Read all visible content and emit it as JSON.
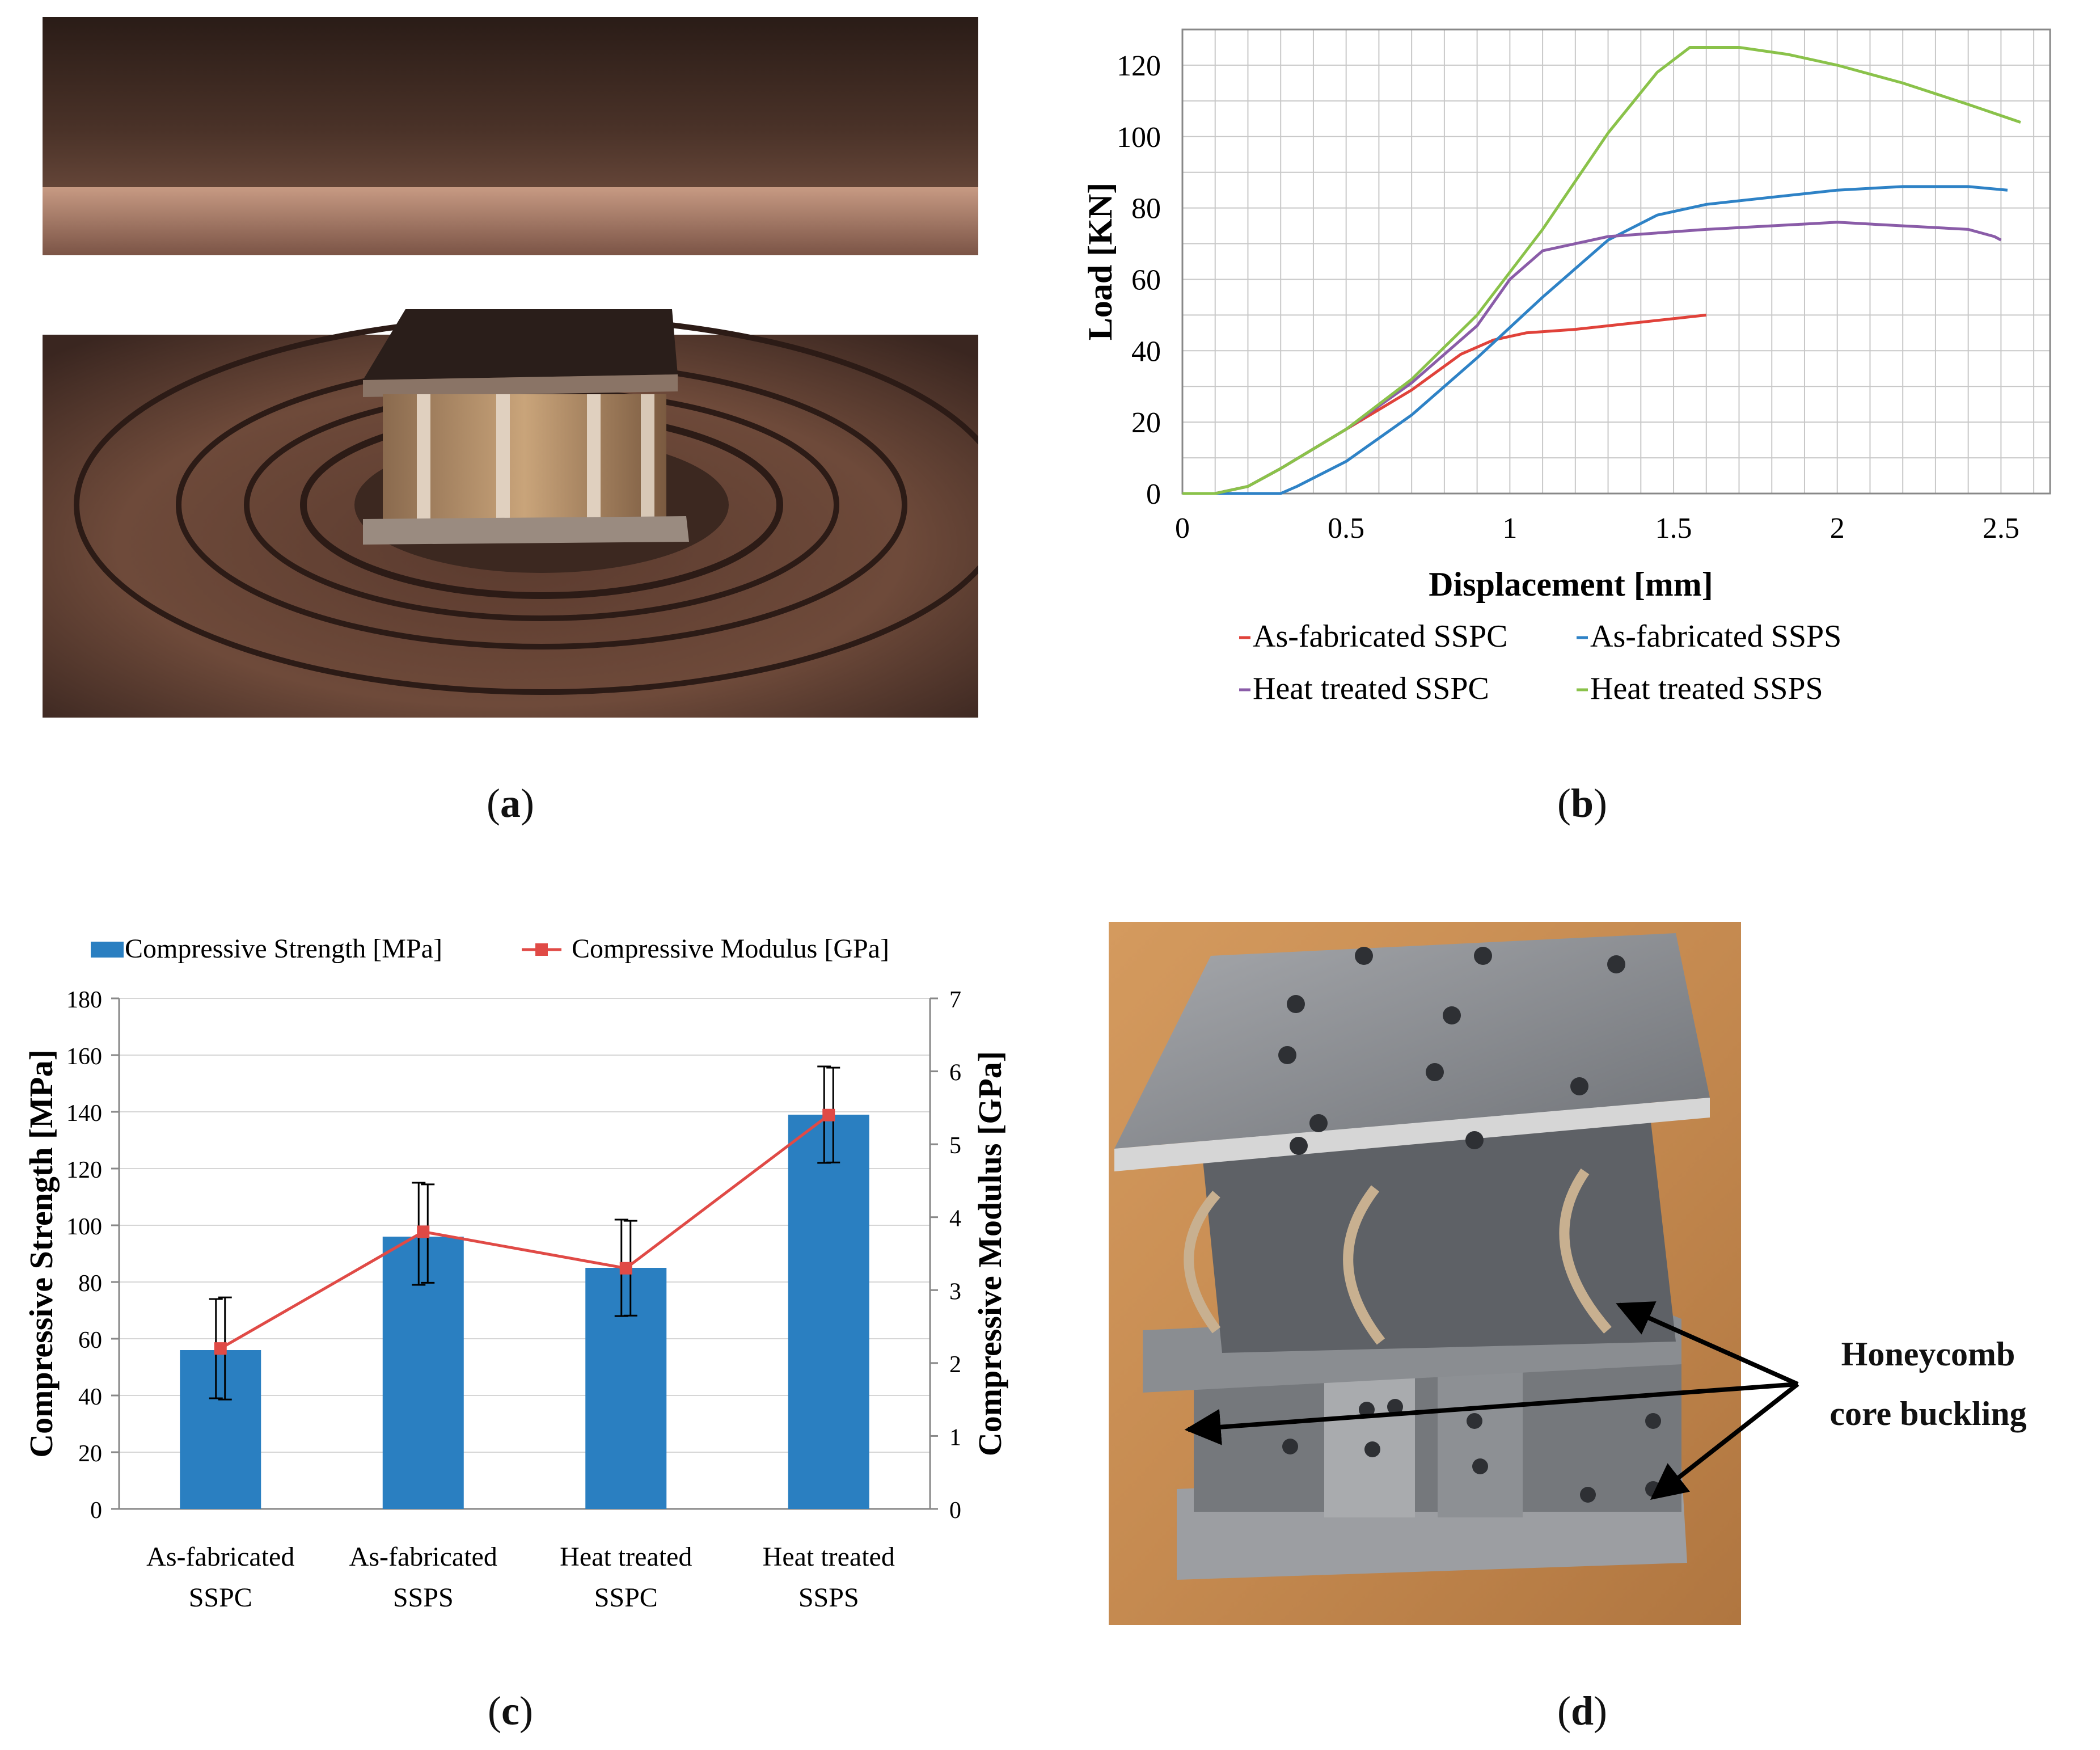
{
  "captions": {
    "a": "a",
    "b": "b",
    "c": "c",
    "d": "d"
  },
  "panel_d": {
    "annotation_line1": "Honeycomb",
    "annotation_line2": "core  buckling"
  },
  "colors": {
    "red": "#e0423a",
    "blue": "#2e82c6",
    "purple": "#8a5ca8",
    "green": "#8ac24a",
    "bar": "#2a7fc1",
    "modulus": "#e04a46"
  },
  "chart_data": [
    {
      "type": "line",
      "xlabel": "Displacement [mm]",
      "ylabel": "Load [KN]",
      "xlim": [
        0,
        2.65
      ],
      "ylim": [
        0,
        130
      ],
      "xticks": [
        "0",
        "0.5",
        "1",
        "1.5",
        "2",
        "2.5"
      ],
      "yticks": [
        "0",
        "20",
        "40",
        "60",
        "80",
        "100",
        "120"
      ],
      "grid": true,
      "legend": "bottom",
      "series": [
        {
          "name": "As-fabricated SSPC",
          "color": "#e0423a",
          "x": [
            0,
            0.1,
            0.2,
            0.3,
            0.5,
            0.7,
            0.85,
            0.95,
            1.05,
            1.2,
            1.4,
            1.6
          ],
          "y": [
            0,
            0,
            2,
            7,
            18,
            29,
            39,
            43,
            45,
            46,
            48,
            50
          ]
        },
        {
          "name": "As-fabricated SSPS",
          "color": "#2e82c6",
          "x": [
            0,
            0.2,
            0.3,
            0.35,
            0.5,
            0.7,
            0.9,
            1.1,
            1.3,
            1.45,
            1.6,
            1.8,
            2.0,
            2.2,
            2.4,
            2.52
          ],
          "y": [
            0,
            0,
            0,
            2,
            9,
            22,
            38,
            55,
            71,
            78,
            81,
            83,
            85,
            86,
            86,
            85
          ]
        },
        {
          "name": "Heat treated SSPC",
          "color": "#8a5ca8",
          "x": [
            0,
            0.1,
            0.2,
            0.3,
            0.5,
            0.7,
            0.9,
            1.0,
            1.1,
            1.3,
            1.6,
            1.8,
            2.0,
            2.2,
            2.4,
            2.48,
            2.5
          ],
          "y": [
            0,
            0,
            2,
            7,
            18,
            31,
            47,
            60,
            68,
            72,
            74,
            75,
            76,
            75,
            74,
            72,
            71
          ]
        },
        {
          "name": "Heat treated SSPS",
          "color": "#8ac24a",
          "x": [
            0,
            0.1,
            0.2,
            0.3,
            0.5,
            0.7,
            0.9,
            1.1,
            1.3,
            1.45,
            1.55,
            1.7,
            1.85,
            2.0,
            2.2,
            2.4,
            2.56
          ],
          "y": [
            0,
            0,
            2,
            7,
            18,
            32,
            50,
            74,
            101,
            118,
            125,
            125,
            123,
            120,
            115,
            109,
            104
          ]
        }
      ]
    },
    {
      "type": "bar",
      "categories": [
        "As-fabricated\nSSPC",
        "As-fabricated\nSSPS",
        "Heat treated\nSSPC",
        "Heat treated\nSSPS"
      ],
      "ylabel": "Compressive Strength [MPa]",
      "y2label": "Compressive  Modulus [GPa]",
      "ylim": [
        0,
        180
      ],
      "y2lim": [
        0,
        7
      ],
      "yticks": [
        "0",
        "20",
        "40",
        "60",
        "80",
        "100",
        "120",
        "140",
        "160",
        "180"
      ],
      "y2ticks": [
        "0",
        "1",
        "2",
        "3",
        "4",
        "5",
        "6",
        "7"
      ],
      "legend": "top",
      "series": [
        {
          "name": "Compressive Strength [MPa]",
          "kind": "bar",
          "color": "#2a7fc1",
          "values": [
            56,
            96,
            85,
            139
          ],
          "err_low": [
            39,
            79,
            68,
            122
          ],
          "err_high": [
            74,
            115,
            102,
            156
          ]
        },
        {
          "name": "Compressive Modulus [GPa]",
          "kind": "line",
          "axis": "right",
          "color": "#e04a46",
          "values": [
            2.2,
            3.8,
            3.3,
            5.4
          ],
          "err_low": [
            1.5,
            3.1,
            2.65,
            4.75
          ],
          "err_high": [
            2.9,
            4.45,
            3.95,
            6.05
          ]
        }
      ]
    }
  ]
}
